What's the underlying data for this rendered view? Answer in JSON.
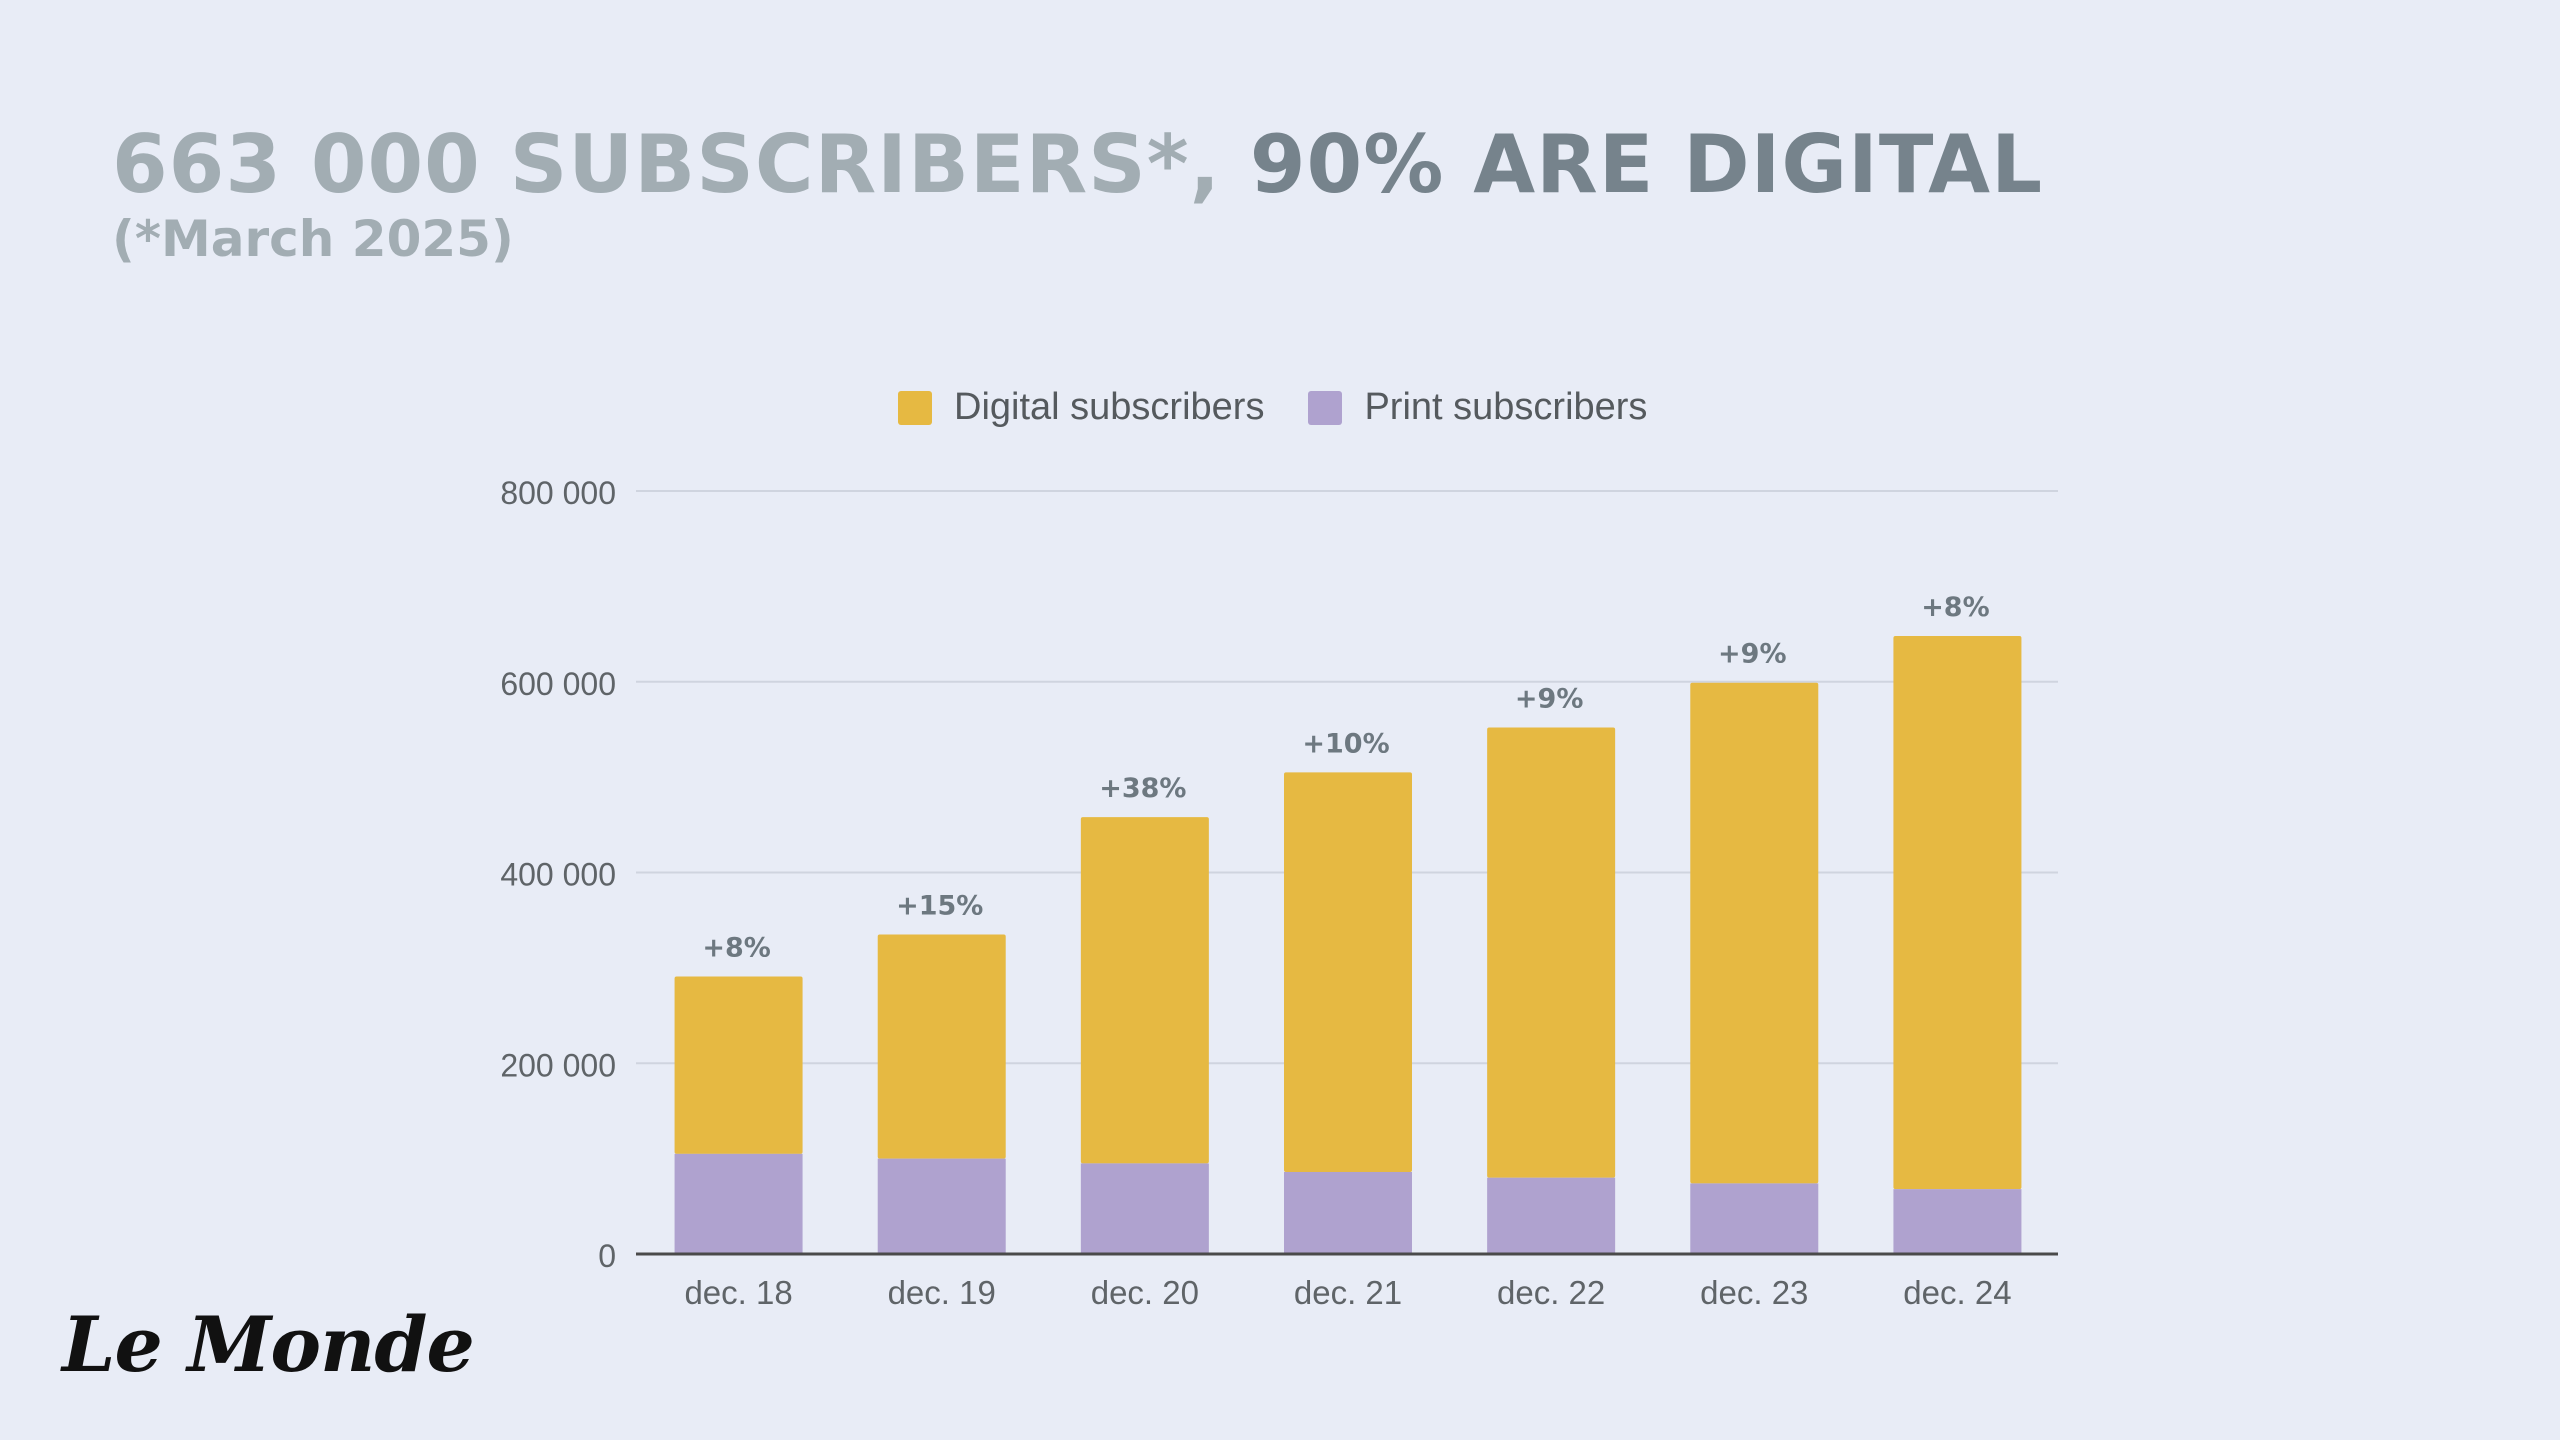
{
  "header": {
    "title_part1": "663 000 SUBSCRIBERS*, ",
    "title_part2": "90% ARE DIGITAL",
    "subtitle": "(*March 2025)"
  },
  "logo": {
    "text": "Le Monde"
  },
  "colors": {
    "background": "#e8ecf6",
    "digital": "#e6b942",
    "print": "#afa2cf",
    "gridline": "#cfd4df",
    "axis": "#4a4a4a",
    "annotation": "#6d7880"
  },
  "chart_data": {
    "type": "bar",
    "stacked": true,
    "categories": [
      "dec. 18",
      "dec. 19",
      "dec. 20",
      "dec. 21",
      "dec. 22",
      "dec. 23",
      "dec. 24"
    ],
    "series": [
      {
        "name": "Print subscribers",
        "color": "#afa2cf",
        "values": [
          105000,
          100000,
          95000,
          86000,
          80000,
          74000,
          68000
        ]
      },
      {
        "name": "Digital subscribers",
        "color": "#e6b942",
        "values": [
          186000,
          235000,
          363000,
          419000,
          472000,
          525000,
          580000
        ]
      }
    ],
    "totals": [
      291000,
      335000,
      458000,
      505000,
      552000,
      599000,
      648000
    ],
    "growth_labels": [
      "+8%",
      "+15%",
      "+38%",
      "+10%",
      "+9%",
      "+9%",
      "+8%"
    ],
    "ylim": [
      0,
      800000
    ],
    "yticks": [
      0,
      200000,
      400000,
      600000,
      800000
    ],
    "ytick_labels": [
      "0",
      "200 000",
      "400 000",
      "600 000",
      "800 000"
    ],
    "legend": [
      {
        "label": "Digital subscribers",
        "color": "#e6b942"
      },
      {
        "label": "Print subscribers",
        "color": "#afa2cf"
      }
    ],
    "legend_position": "top-center",
    "grid": true,
    "xlabel": "",
    "ylabel": ""
  }
}
